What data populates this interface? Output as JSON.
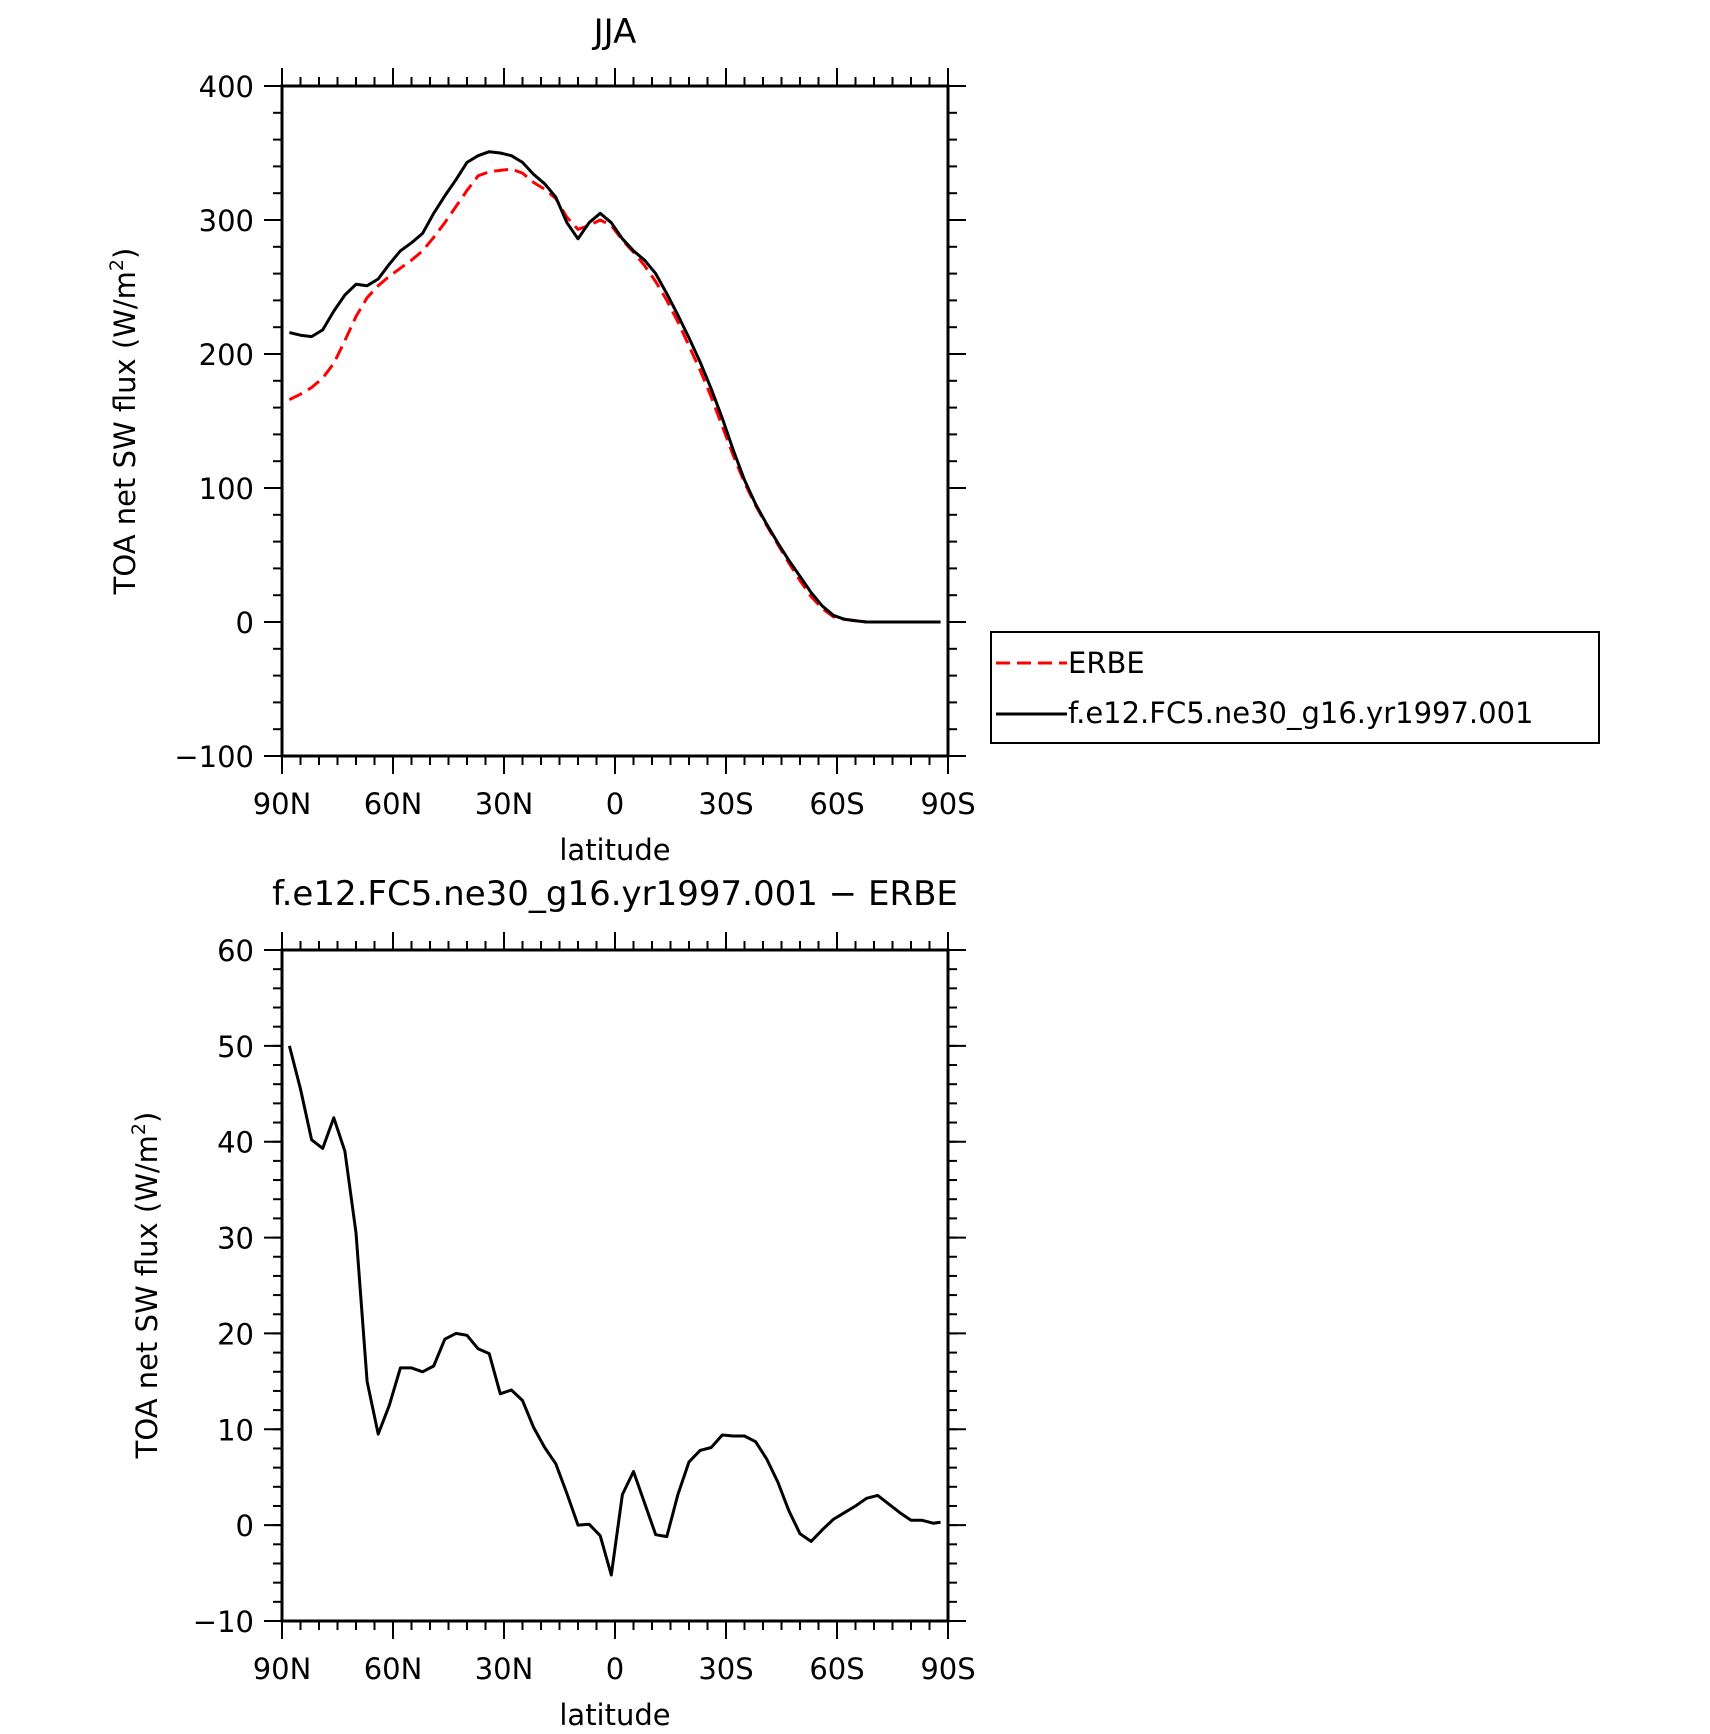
{
  "chart_data": [
    {
      "type": "line",
      "title": "JJA",
      "xlabel": "latitude",
      "ylabel": "TOA net SW flux (W/m²)",
      "ylabel_parts": [
        "TOA net SW flux (W/m",
        "2",
        ")"
      ],
      "xlim": [
        90,
        -90
      ],
      "ylim": [
        -100,
        400
      ],
      "yticks": [
        -100,
        0,
        100,
        200,
        300,
        400
      ],
      "ytick_labels": [
        "−100",
        "0",
        "100",
        "200",
        "300",
        "400"
      ],
      "xticks": [
        90,
        60,
        30,
        0,
        -30,
        -60,
        -90
      ],
      "xtick_labels": [
        "90N",
        "60N",
        "30N",
        "0",
        "30S",
        "60S",
        "90S"
      ],
      "legend": "right",
      "series": [
        {
          "name": "ERBE",
          "color": "#ff0000",
          "style": "dashed",
          "x": [
            88,
            85,
            82,
            79,
            76,
            73,
            70,
            67,
            64,
            61,
            58,
            55,
            52,
            49,
            46,
            43,
            40,
            37,
            34,
            31,
            28,
            25,
            22,
            19,
            16,
            13,
            10,
            7,
            4,
            1,
            -2,
            -5,
            -8,
            -11,
            -14,
            -17,
            -20,
            -23,
            -26,
            -29,
            -32,
            -35,
            -38,
            -41,
            -44,
            -47,
            -50,
            -53,
            -56,
            -59,
            -62,
            -65,
            -68,
            -71,
            -74,
            -77,
            -80,
            -83,
            -86,
            -88
          ],
          "y": [
            166,
            170,
            175,
            182,
            193,
            210,
            228,
            242,
            251,
            258,
            264,
            270,
            277,
            287,
            298,
            310,
            322,
            333,
            336,
            337,
            338,
            335,
            328,
            323,
            316,
            302,
            293,
            296,
            300,
            296,
            285,
            276,
            266,
            254,
            240,
            224,
            206,
            188,
            168,
            146,
            124,
            104,
            87,
            72,
            58,
            44,
            31,
            19,
            10,
            4,
            2,
            1,
            0,
            0,
            0,
            0,
            0,
            0,
            0,
            0
          ]
        },
        {
          "name": "f.e12.FC5.ne30_g16.yr1997.001",
          "color": "#000000",
          "style": "solid",
          "x": [
            88,
            85,
            82,
            79,
            76,
            73,
            70,
            67,
            64,
            61,
            58,
            55,
            52,
            49,
            46,
            43,
            40,
            37,
            34,
            31,
            28,
            25,
            22,
            19,
            16,
            13,
            10,
            7,
            4,
            1,
            -2,
            -5,
            -8,
            -11,
            -14,
            -17,
            -20,
            -23,
            -26,
            -29,
            -32,
            -35,
            -38,
            -41,
            -44,
            -47,
            -50,
            -53,
            -56,
            -59,
            -62,
            -65,
            -68,
            -71,
            -74,
            -77,
            -80,
            -83,
            -86,
            -88
          ],
          "y": [
            216,
            214,
            213,
            218,
            232,
            244,
            252,
            251,
            256,
            267,
            277,
            283,
            290,
            305,
            318,
            330,
            343,
            348,
            351,
            350,
            348,
            343,
            334,
            327,
            317,
            298,
            286,
            298,
            305,
            298,
            286,
            277,
            270,
            260,
            245,
            229,
            212,
            194,
            174,
            152,
            128,
            106,
            88,
            73,
            59,
            46,
            34,
            22,
            12,
            5,
            2,
            1,
            0,
            0,
            0,
            0,
            0,
            0,
            0,
            0
          ]
        }
      ]
    },
    {
      "type": "line",
      "title": "f.e12.FC5.ne30_g16.yr1997.001 − ERBE",
      "xlabel": "latitude",
      "ylabel": "TOA net SW flux (W/m²)",
      "ylabel_parts": [
        "TOA net SW flux (W/m",
        "2",
        ")"
      ],
      "xlim": [
        90,
        -90
      ],
      "ylim": [
        -10,
        60
      ],
      "yticks": [
        -10,
        0,
        10,
        20,
        30,
        40,
        50,
        60
      ],
      "ytick_labels": [
        "−10",
        "0",
        "10",
        "20",
        "30",
        "40",
        "50",
        "60"
      ],
      "xticks": [
        90,
        60,
        30,
        0,
        -30,
        -60,
        -90
      ],
      "xtick_labels": [
        "90N",
        "60N",
        "30N",
        "0",
        "30S",
        "60S",
        "90S"
      ],
      "series": [
        {
          "color": "#000000",
          "style": "solid",
          "x": [
            88,
            85,
            82,
            79,
            76,
            73,
            70,
            67,
            64,
            61,
            58,
            55,
            52,
            49,
            46,
            43,
            40,
            37,
            34,
            31,
            28,
            25,
            22,
            19,
            16,
            13,
            10,
            7,
            4,
            1,
            -2,
            -5,
            -8,
            -11,
            -14,
            -17,
            -20,
            -23,
            -26,
            -29,
            -32,
            -35,
            -38,
            -41,
            -44,
            -47,
            -50,
            -53,
            -56,
            -59,
            -62,
            -65,
            -68,
            -71,
            -74,
            -77,
            -80,
            -83,
            -86,
            -88
          ],
          "y": [
            50,
            45.5,
            40.2,
            39.3,
            42.5,
            39,
            30.5,
            15,
            9.5,
            12.5,
            16.4,
            16.4,
            16,
            16.6,
            19.4,
            20,
            19.8,
            18.4,
            17.9,
            13.7,
            14.1,
            13,
            10.2,
            8.1,
            6.4,
            3.3,
            0,
            0.1,
            -1.1,
            -5.2,
            3.2,
            5.6,
            2.3,
            -1,
            -1.2,
            3.2,
            6.6,
            7.8,
            8.1,
            9.4,
            9.3,
            9.3,
            8.7,
            6.9,
            4.5,
            1.5,
            -0.9,
            -1.7,
            -0.5,
            0.6,
            1.3,
            2,
            2.8,
            3.1,
            2.2,
            1.3,
            0.5,
            0.5,
            0.2,
            0.3
          ]
        }
      ]
    }
  ]
}
